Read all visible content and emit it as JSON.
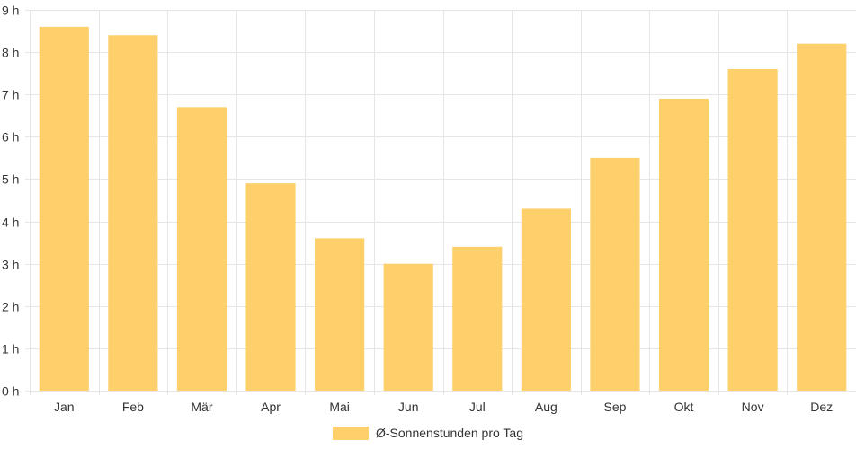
{
  "chart_data": {
    "type": "bar",
    "categories": [
      "Jan",
      "Feb",
      "Mär",
      "Apr",
      "Mai",
      "Jun",
      "Jul",
      "Aug",
      "Sep",
      "Okt",
      "Nov",
      "Dez"
    ],
    "series": [
      {
        "name": "Ø-Sonnenstunden pro Tag",
        "values": [
          8.6,
          8.4,
          6.7,
          4.9,
          3.6,
          3.0,
          3.4,
          4.3,
          5.5,
          6.9,
          7.6,
          8.2
        ],
        "color": "#fed06b"
      }
    ],
    "y_ticks": [
      "0 h",
      "1 h",
      "2 h",
      "3 h",
      "4 h",
      "5 h",
      "6 h",
      "7 h",
      "8 h",
      "9 h"
    ],
    "ylim": [
      0,
      9
    ],
    "grid": true,
    "legend_position": "bottom",
    "colors": {
      "bar": "#fed06b",
      "grid": "#e6e6e6",
      "text": "#333333"
    }
  }
}
